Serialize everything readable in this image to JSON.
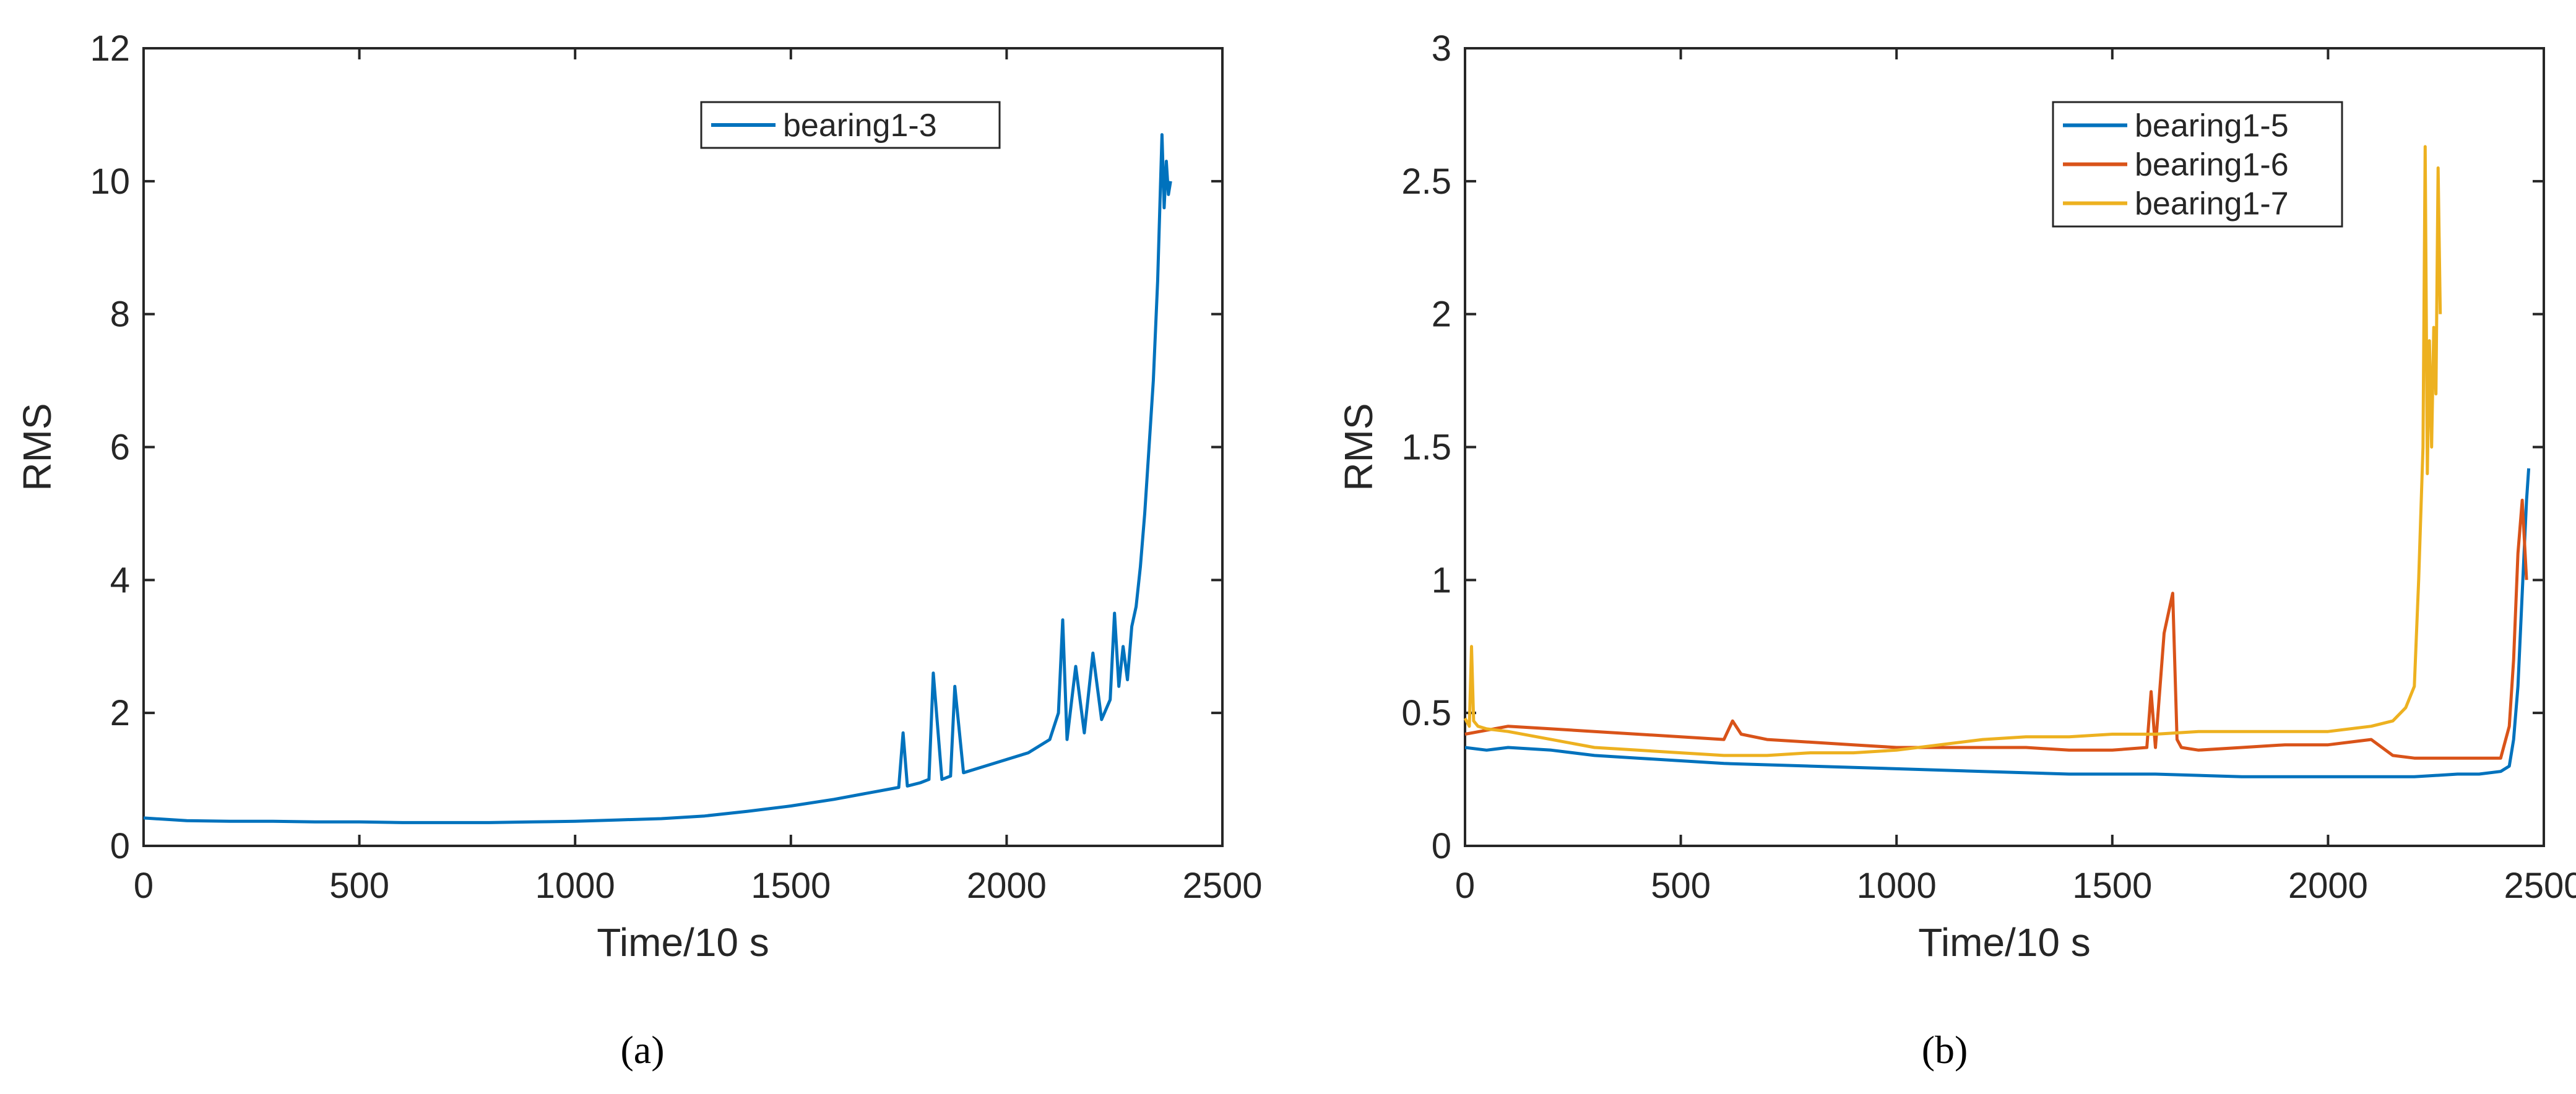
{
  "chart_data": [
    {
      "type": "line",
      "panel_label": "(a)",
      "xlabel": "Time/10 s",
      "ylabel": "RMS",
      "xlim": [
        0,
        2500
      ],
      "ylim": [
        0,
        12
      ],
      "xticks": [
        0,
        500,
        1000,
        1500,
        2000,
        2500
      ],
      "yticks": [
        0,
        2,
        4,
        6,
        8,
        10,
        12
      ],
      "xtick_labels": [
        "0",
        "500",
        "1000",
        "1500",
        "2000",
        "2500"
      ],
      "ytick_labels": [
        "0",
        "2",
        "4",
        "6",
        "8",
        "10",
        "12"
      ],
      "legend_position": "top-right",
      "series": [
        {
          "name": "bearing1-3",
          "color": "#0072BD",
          "x": [
            0,
            100,
            200,
            300,
            400,
            500,
            600,
            700,
            800,
            900,
            1000,
            1100,
            1200,
            1300,
            1400,
            1500,
            1600,
            1700,
            1750,
            1760,
            1770,
            1800,
            1820,
            1830,
            1850,
            1870,
            1880,
            1900,
            1950,
            2000,
            2050,
            2100,
            2120,
            2130,
            2140,
            2160,
            2180,
            2200,
            2220,
            2240,
            2250,
            2260,
            2270,
            2280,
            2290,
            2300,
            2310,
            2320,
            2330,
            2340,
            2350,
            2360,
            2365,
            2370,
            2375,
            2380
          ],
          "values": [
            0.42,
            0.38,
            0.37,
            0.37,
            0.36,
            0.36,
            0.35,
            0.35,
            0.35,
            0.36,
            0.37,
            0.39,
            0.41,
            0.45,
            0.52,
            0.6,
            0.7,
            0.82,
            0.88,
            1.7,
            0.9,
            0.95,
            1.0,
            2.6,
            1.0,
            1.05,
            2.4,
            1.1,
            1.2,
            1.3,
            1.4,
            1.6,
            2.0,
            3.4,
            1.6,
            2.7,
            1.7,
            2.9,
            1.9,
            2.2,
            3.5,
            2.4,
            3.0,
            2.5,
            3.3,
            3.6,
            4.2,
            5.0,
            6.0,
            7.0,
            8.5,
            10.7,
            9.6,
            10.3,
            9.8,
            10.0
          ]
        }
      ]
    },
    {
      "type": "line",
      "panel_label": "(b)",
      "xlabel": "Time/10 s",
      "ylabel": "RMS",
      "xlim": [
        0,
        2500
      ],
      "ylim": [
        0,
        3
      ],
      "xticks": [
        0,
        500,
        1000,
        1500,
        2000,
        2500
      ],
      "yticks": [
        0,
        0.5,
        1,
        1.5,
        2,
        2.5,
        3
      ],
      "xtick_labels": [
        "0",
        "500",
        "1000",
        "1500",
        "2000",
        "2500"
      ],
      "ytick_labels": [
        "0",
        "0.5",
        "1",
        "1.5",
        "2",
        "2.5",
        "3"
      ],
      "legend_position": "top-right",
      "series": [
        {
          "name": "bearing1-5",
          "color": "#0072BD",
          "x": [
            0,
            50,
            100,
            200,
            300,
            400,
            500,
            600,
            800,
            1000,
            1200,
            1400,
            1600,
            1800,
            2000,
            2200,
            2300,
            2350,
            2400,
            2420,
            2430,
            2440,
            2450,
            2460,
            2465
          ],
          "values": [
            0.37,
            0.36,
            0.37,
            0.36,
            0.34,
            0.33,
            0.32,
            0.31,
            0.3,
            0.29,
            0.28,
            0.27,
            0.27,
            0.26,
            0.26,
            0.26,
            0.27,
            0.27,
            0.28,
            0.3,
            0.4,
            0.6,
            0.95,
            1.3,
            1.42
          ]
        },
        {
          "name": "bearing1-6",
          "color": "#D95319",
          "x": [
            0,
            100,
            200,
            300,
            400,
            500,
            600,
            620,
            640,
            700,
            800,
            900,
            1000,
            1100,
            1200,
            1300,
            1400,
            1500,
            1580,
            1590,
            1600,
            1620,
            1640,
            1650,
            1660,
            1700,
            1800,
            1900,
            2000,
            2100,
            2150,
            2200,
            2300,
            2400,
            2420,
            2430,
            2440,
            2450,
            2460
          ],
          "values": [
            0.42,
            0.45,
            0.44,
            0.43,
            0.42,
            0.41,
            0.4,
            0.47,
            0.42,
            0.4,
            0.39,
            0.38,
            0.37,
            0.37,
            0.37,
            0.37,
            0.36,
            0.36,
            0.37,
            0.58,
            0.37,
            0.8,
            0.95,
            0.4,
            0.37,
            0.36,
            0.37,
            0.38,
            0.38,
            0.4,
            0.34,
            0.33,
            0.33,
            0.33,
            0.45,
            0.7,
            1.1,
            1.3,
            1.0
          ]
        },
        {
          "name": "bearing1-7",
          "color": "#EDB120",
          "x": [
            0,
            10,
            15,
            20,
            30,
            50,
            100,
            200,
            300,
            400,
            500,
            600,
            700,
            800,
            900,
            1000,
            1100,
            1200,
            1300,
            1400,
            1500,
            1600,
            1700,
            1800,
            1900,
            2000,
            2100,
            2150,
            2180,
            2200,
            2210,
            2220,
            2225,
            2230,
            2235,
            2240,
            2245,
            2250,
            2255,
            2260
          ],
          "values": [
            0.48,
            0.45,
            0.75,
            0.47,
            0.45,
            0.44,
            0.43,
            0.4,
            0.37,
            0.36,
            0.35,
            0.34,
            0.34,
            0.35,
            0.35,
            0.36,
            0.38,
            0.4,
            0.41,
            0.41,
            0.42,
            0.42,
            0.43,
            0.43,
            0.43,
            0.43,
            0.45,
            0.47,
            0.52,
            0.6,
            1.0,
            1.5,
            2.63,
            1.4,
            1.9,
            1.5,
            1.95,
            1.7,
            2.55,
            2.0
          ]
        }
      ]
    }
  ]
}
